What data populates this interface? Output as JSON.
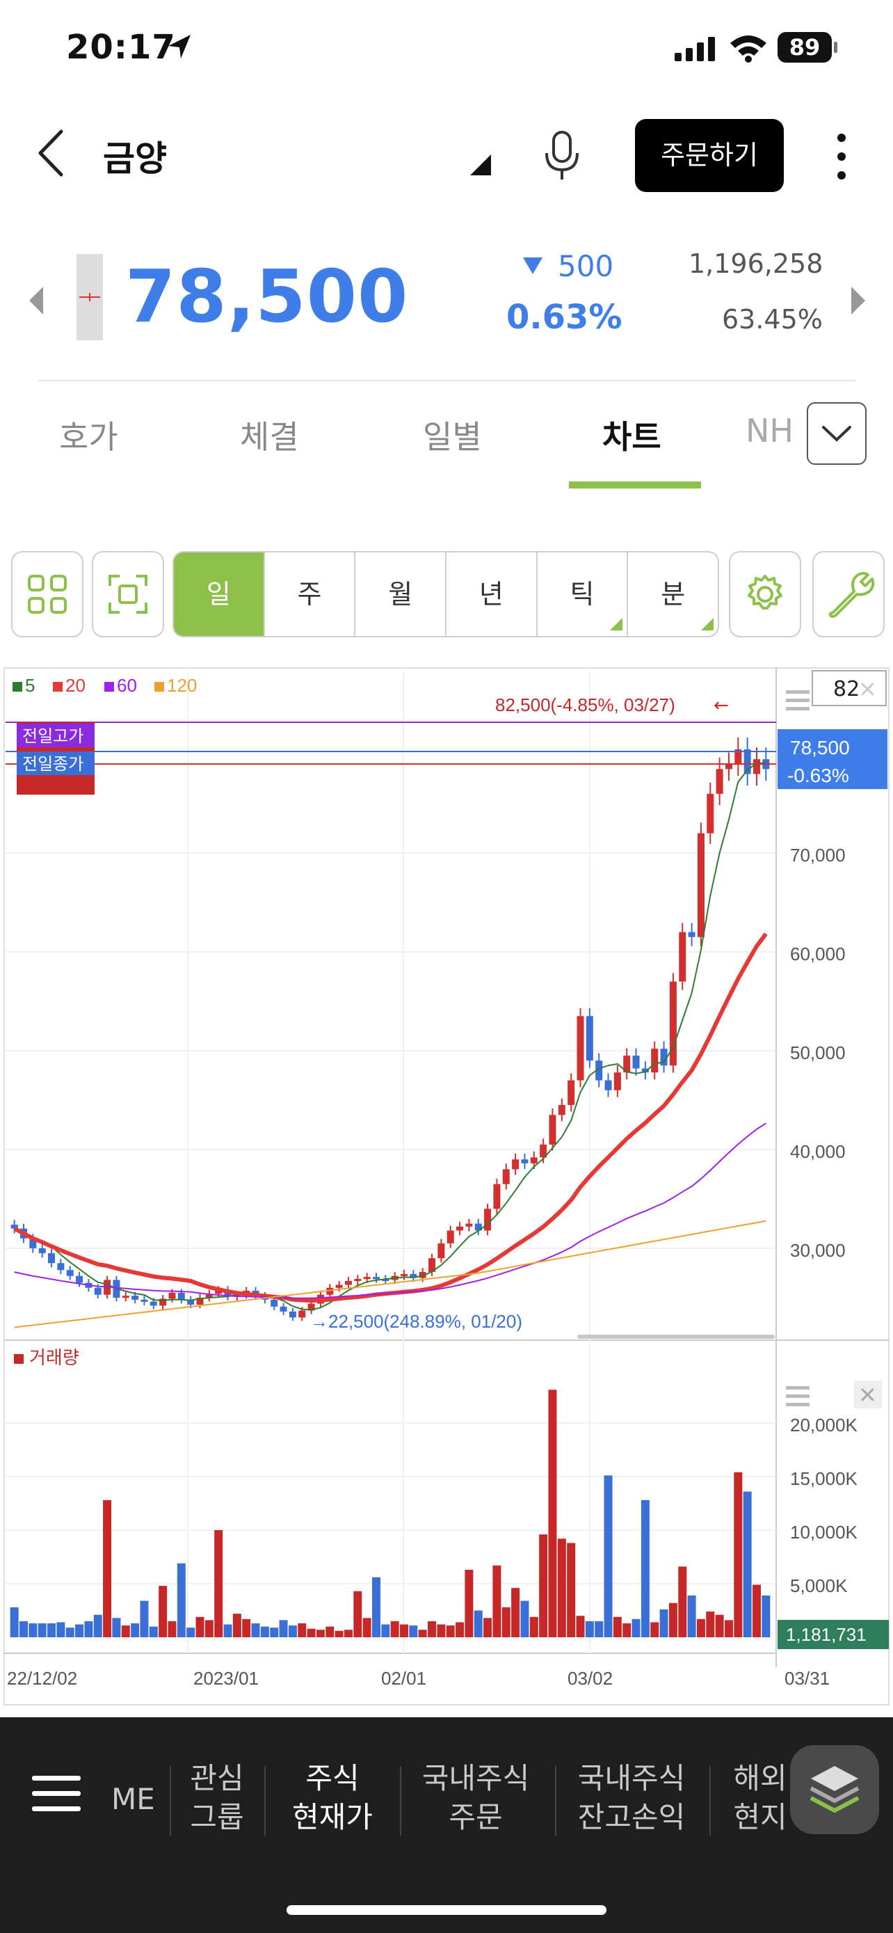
{
  "status": {
    "time": "20:17",
    "battery": "89"
  },
  "header": {
    "title": "금양",
    "order_label": "주문하기"
  },
  "quote": {
    "price": "78,500",
    "change": "500",
    "change_pct": "0.63%",
    "volume": "1,196,258",
    "volume_pct": "63.45%",
    "color": "#3f7ee8"
  },
  "tabs": [
    "호가",
    "체결",
    "일별",
    "차트",
    "NH"
  ],
  "active_tab": "차트",
  "periods": [
    "일",
    "주",
    "월",
    "년",
    "틱",
    "분"
  ],
  "active_period": "일",
  "chart": {
    "legend": [
      {
        "label": "5",
        "color": "#2e7d32"
      },
      {
        "label": "20",
        "color": "#e53935"
      },
      {
        "label": "60",
        "color": "#a020f0"
      },
      {
        "label": "120",
        "color": "#f0a030"
      }
    ],
    "high_label": "82,500(-4.85%, 03/27)",
    "low_label": "22,500(248.89%, 01/20)",
    "prev_high_tag": "전일고가",
    "prev_close_tag": "전일종가",
    "price_tag": "78,500",
    "price_tag_pct": "-0.63%",
    "period_count": "82",
    "volume_legend": "거래량",
    "volume_tag": "1,181,731",
    "price_axis": [
      "70,000",
      "60,000",
      "50,000",
      "40,000",
      "30,000"
    ],
    "volume_axis": [
      "20,000K",
      "15,000K",
      "10,000K",
      "5,000K"
    ],
    "date_axis": [
      "22/12/02",
      "2023/01",
      "02/01",
      "03/02",
      "03/31"
    ]
  },
  "chart_data": {
    "type": "candlestick",
    "x_labels": [
      "22/12/02",
      "2023/01",
      "02/01",
      "03/02",
      "03/31"
    ],
    "y_price_ticks": [
      30000,
      40000,
      50000,
      60000,
      70000
    ],
    "y_volume_ticks_k": [
      5000,
      10000,
      15000,
      20000
    ],
    "close": [
      32000,
      31000,
      30000,
      29500,
      28500,
      27800,
      27200,
      26500,
      26000,
      25300,
      26800,
      25000,
      25200,
      24800,
      24600,
      24200,
      24900,
      25500,
      24800,
      24300,
      25000,
      25400,
      25800,
      25100,
      25300,
      25700,
      25200,
      24800,
      24100,
      23600,
      23000,
      23700,
      24400,
      25300,
      26000,
      26300,
      26700,
      26900,
      27100,
      26900,
      26800,
      27200,
      27400,
      27000,
      27600,
      29000,
      30500,
      31800,
      32200,
      32500,
      31800,
      34000,
      36500,
      38000,
      39000,
      38600,
      39200,
      40500,
      43500,
      44500,
      47000,
      53500,
      49000,
      47000,
      46000,
      47800,
      49500,
      48200,
      47800,
      50200,
      48500,
      57000,
      62000,
      61500,
      72000,
      76000,
      78500,
      79000,
      80500,
      78000,
      79500,
      78500
    ],
    "volume_k": [
      2800,
      1500,
      1300,
      1300,
      1300,
      1400,
      900,
      1200,
      1500,
      2100,
      12800,
      1800,
      1100,
      1300,
      3400,
      1000,
      4800,
      1500,
      6900,
      900,
      1900,
      1600,
      10000,
      1200,
      2200,
      1700,
      1300,
      1000,
      900,
      1600,
      1100,
      1300,
      800,
      700,
      1000,
      600,
      700,
      4300,
      1800,
      5600,
      1200,
      1500,
      1200,
      1100,
      700,
      1500,
      1200,
      1100,
      1400,
      6300,
      2500,
      1800,
      6700,
      2800,
      4600,
      3400,
      1900,
      9600,
      23100,
      9200,
      8800,
      2000,
      1500,
      1500,
      15100,
      1900,
      1300,
      1700,
      12800,
      1400,
      2600,
      3200,
      6600,
      3900,
      1700,
      2400,
      2100,
      1600,
      15400,
      13600,
      4900,
      3900
    ]
  },
  "bottom_nav": {
    "partial": "ME",
    "items": [
      {
        "line1": "관심",
        "line2": "그룹"
      },
      {
        "line1": "주식",
        "line2": "현재가"
      },
      {
        "line1": "국내주식",
        "line2": "주문"
      },
      {
        "line1": "국내주식",
        "line2": "잔고손익"
      },
      {
        "line1": "해외",
        "line2": "현지"
      }
    ]
  }
}
